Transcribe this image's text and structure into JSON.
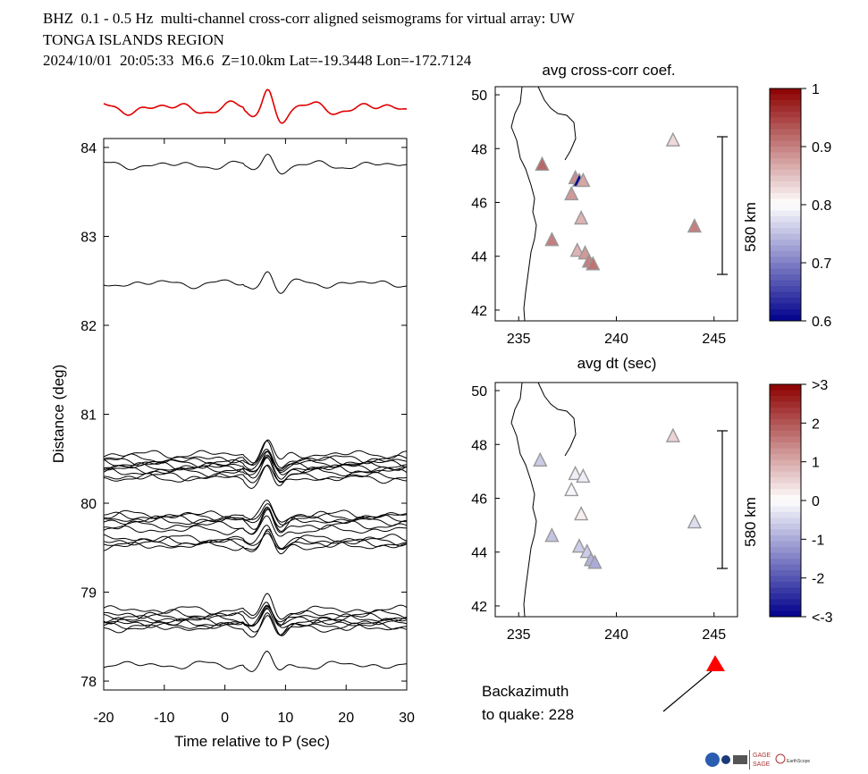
{
  "header": {
    "line1": "BHZ  0.1 - 0.5 Hz  multi-channel cross-corr aligned seismograms for virtual array: UW",
    "line2": "TONGA ISLANDS REGION",
    "line3": "2024/10/01  20:05:33  M6.6  Z=10.0km Lat=-19.3448 Lon=-172.7124"
  },
  "backazimuth": {
    "label1": "Backazimuth",
    "label2": "to quake:  228",
    "value_deg": 228
  },
  "chart_data": [
    {
      "type": "line",
      "name": "seismogram-section",
      "xlabel": "Time relative to P (sec)",
      "ylabel": "Distance (deg)",
      "xlim": [
        -20,
        30
      ],
      "ylim": [
        77.9,
        84.1
      ],
      "xticks": [
        -20,
        -10,
        0,
        10,
        20,
        30
      ],
      "yticks": [
        78,
        79,
        80,
        81,
        82,
        83,
        84
      ],
      "trace_offsets_deg": [
        83.8,
        82.47,
        80.55,
        80.5,
        80.47,
        80.45,
        80.42,
        80.4,
        80.38,
        80.35,
        80.3,
        80.28,
        79.87,
        79.85,
        79.82,
        79.8,
        79.75,
        79.7,
        79.6,
        79.57,
        79.55,
        79.52,
        78.8,
        78.75,
        78.72,
        78.7,
        78.67,
        78.65,
        78.62,
        78.6,
        78.18
      ],
      "stack_color": "#e00000"
    },
    {
      "type": "scatter",
      "name": "map-avg-cross-corr",
      "title": "avg cross-corr coef.",
      "xlabel": "avg dt (sec)",
      "xlim": [
        233.8,
        246.2
      ],
      "ylim": [
        41.6,
        50.3
      ],
      "xticks": [
        235,
        240,
        245
      ],
      "yticks": [
        42,
        44,
        46,
        48,
        50
      ],
      "scalebar": "580 km",
      "colorbar": {
        "min": 0.6,
        "max": 1.0,
        "ticks": [
          "1",
          "0.9",
          "0.8",
          "0.7",
          "0.6"
        ]
      },
      "points": [
        {
          "lon": 236.2,
          "lat": 47.4,
          "v": 0.92
        },
        {
          "lon": 236.7,
          "lat": 44.6,
          "v": 0.9
        },
        {
          "lon": 237.7,
          "lat": 46.3,
          "v": 0.88
        },
        {
          "lon": 237.9,
          "lat": 46.9,
          "v": 0.89
        },
        {
          "lon": 238.1,
          "lat": 46.8,
          "v": 0.6
        },
        {
          "lon": 238.3,
          "lat": 46.8,
          "v": 0.87
        },
        {
          "lon": 238.2,
          "lat": 45.4,
          "v": 0.86
        },
        {
          "lon": 238.0,
          "lat": 44.2,
          "v": 0.86
        },
        {
          "lon": 238.4,
          "lat": 44.1,
          "v": 0.88
        },
        {
          "lon": 238.6,
          "lat": 43.8,
          "v": 0.9
        },
        {
          "lon": 238.8,
          "lat": 43.7,
          "v": 0.91
        },
        {
          "lon": 242.9,
          "lat": 48.3,
          "v": 0.83
        },
        {
          "lon": 244.0,
          "lat": 45.1,
          "v": 0.9
        }
      ]
    },
    {
      "type": "scatter",
      "name": "map-avg-dt",
      "xlabel": "",
      "xlim": [
        233.8,
        246.2
      ],
      "ylim": [
        41.6,
        50.3
      ],
      "xticks": [
        235,
        240,
        245
      ],
      "yticks": [
        42,
        44,
        46,
        48,
        50
      ],
      "scalebar": "580 km",
      "colorbar": {
        "min": -3,
        "max": 3,
        "ticks": [
          ">3",
          "2",
          "1",
          "0",
          "-1",
          "-2",
          "<-3"
        ]
      },
      "points": [
        {
          "lon": 236.1,
          "lat": 47.4,
          "v": -0.6
        },
        {
          "lon": 236.7,
          "lat": 44.6,
          "v": -0.7
        },
        {
          "lon": 237.7,
          "lat": 46.3,
          "v": -0.1
        },
        {
          "lon": 237.9,
          "lat": 46.9,
          "v": -0.2
        },
        {
          "lon": 238.3,
          "lat": 46.8,
          "v": -0.2
        },
        {
          "lon": 238.2,
          "lat": 45.4,
          "v": 0.2
        },
        {
          "lon": 238.1,
          "lat": 44.2,
          "v": -0.6
        },
        {
          "lon": 238.5,
          "lat": 44.0,
          "v": -0.6
        },
        {
          "lon": 238.7,
          "lat": 43.7,
          "v": -0.9
        },
        {
          "lon": 238.9,
          "lat": 43.6,
          "v": -1.0
        },
        {
          "lon": 242.9,
          "lat": 48.3,
          "v": 0.5
        },
        {
          "lon": 244.0,
          "lat": 45.1,
          "v": -0.4
        }
      ]
    }
  ]
}
